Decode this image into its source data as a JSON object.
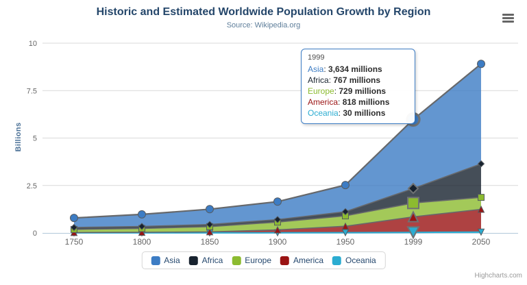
{
  "header": {
    "title": "Historic and Estimated Worldwide Population Growth by Region",
    "subtitle": "Source: Wikipedia.org"
  },
  "chart_data": {
    "type": "area",
    "stacking": "normal",
    "stack_order": "first-series-on-top",
    "title": "Historic and Estimated Worldwide Population Growth by Region",
    "subtitle": "Source: Wikipedia.org",
    "xlabel": "",
    "ylabel": "Billions",
    "unit": "millions",
    "ylim": [
      0,
      10
    ],
    "yticks": [
      0,
      2.5,
      5,
      7.5,
      10
    ],
    "grid": true,
    "legend_position": "bottom",
    "categories": [
      "1750",
      "1800",
      "1850",
      "1900",
      "1950",
      "1999",
      "2050"
    ],
    "series": [
      {
        "name": "Asia",
        "color": "#3c7cc4",
        "marker": "circle",
        "values": [
          502,
          635,
          809,
          947,
          1402,
          3634,
          5268
        ]
      },
      {
        "name": "Africa",
        "color": "#17222e",
        "marker": "diamond",
        "values": [
          106,
          107,
          111,
          133,
          221,
          767,
          1766
        ]
      },
      {
        "name": "Europe",
        "color": "#8cbb30",
        "marker": "square",
        "values": [
          163,
          203,
          276,
          408,
          547,
          729,
          628
        ]
      },
      {
        "name": "America",
        "color": "#9a1313",
        "marker": "triangle",
        "values": [
          18,
          31,
          54,
          156,
          339,
          818,
          1201
        ]
      },
      {
        "name": "Oceania",
        "color": "#2bacd1",
        "marker": "triangle-down",
        "values": [
          2,
          2,
          2,
          6,
          13,
          30,
          46
        ]
      }
    ],
    "hover_index": 5
  },
  "tooltip": {
    "header": "1999",
    "rows": [
      {
        "name": "Asia",
        "value": "3,634 millions"
      },
      {
        "name": "Africa",
        "value": "767 millions"
      },
      {
        "name": "Europe",
        "value": "729 millions"
      },
      {
        "name": "America",
        "value": "818 millions"
      },
      {
        "name": "Oceania",
        "value": "30 millions"
      }
    ]
  },
  "credits": "Highcharts.com"
}
